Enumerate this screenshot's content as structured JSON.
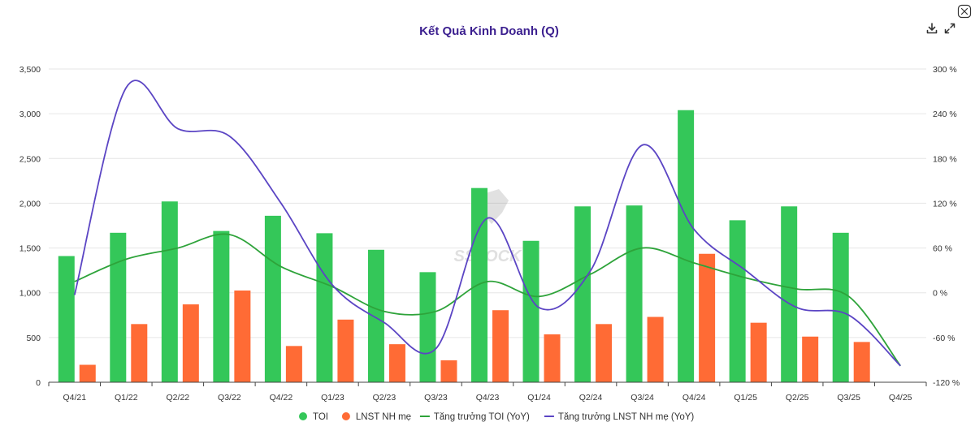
{
  "chart_data": {
    "type": "bar",
    "title": "Kết Quả Kinh Doanh (Q)",
    "watermark": "SSTOCK",
    "categories": [
      "Q4/21",
      "Q1/22",
      "Q2/22",
      "Q3/22",
      "Q4/22",
      "Q1/23",
      "Q2/23",
      "Q3/23",
      "Q4/23",
      "Q1/24",
      "Q2/24",
      "Q3/24",
      "Q4/24",
      "Q1/25",
      "Q2/25",
      "Q3/25",
      "Q4/25"
    ],
    "y_left": {
      "min": 0,
      "max": 3500,
      "ticks": [
        0,
        500,
        1000,
        1500,
        2000,
        2500,
        3000,
        3500
      ],
      "tick_labels": [
        "0",
        "500",
        "1,000",
        "1,500",
        "2,000",
        "2,500",
        "3,000",
        "3,500"
      ]
    },
    "y_right": {
      "min": -120,
      "max": 300,
      "ticks": [
        -120,
        -60,
        0,
        60,
        120,
        180,
        240,
        300
      ],
      "tick_labels": [
        "-120 %",
        "-60 %",
        "0 %",
        "60 %",
        "120 %",
        "180 %",
        "240 %",
        "300 %"
      ]
    },
    "grid": true,
    "legend_position": "bottom-center",
    "series": [
      {
        "name": "TOI",
        "type": "bar",
        "axis": "left",
        "color": "#34c759",
        "values": [
          1410,
          1670,
          2020,
          1690,
          1860,
          1665,
          1480,
          1230,
          2170,
          1580,
          1965,
          1975,
          3040,
          1810,
          1965,
          1670,
          null
        ]
      },
      {
        "name": "LNST NH mẹ",
        "type": "bar",
        "axis": "left",
        "color": "#ff6b35",
        "values": [
          195,
          650,
          870,
          1025,
          405,
          700,
          425,
          245,
          805,
          535,
          650,
          730,
          1435,
          665,
          510,
          450,
          null
        ]
      },
      {
        "name": "Tăng trưởng TOI (YoY)",
        "type": "line",
        "axis": "right",
        "color": "#2ea33a",
        "values": [
          15,
          45,
          60,
          78,
          35,
          8,
          -25,
          -25,
          15,
          -5,
          25,
          60,
          40,
          20,
          5,
          -5,
          -98
        ]
      },
      {
        "name": "Tăng trưởng LNST NH mẹ (YoY)",
        "type": "line",
        "axis": "right",
        "color": "#5b45c4",
        "values": [
          -3,
          275,
          220,
          210,
          120,
          10,
          -40,
          -75,
          100,
          -20,
          30,
          198,
          85,
          30,
          -20,
          -30,
          -98
        ]
      }
    ]
  },
  "toolbar": {
    "download_icon": "download-icon",
    "expand_icon": "expand-icon",
    "corner_icon": "close-icon"
  }
}
